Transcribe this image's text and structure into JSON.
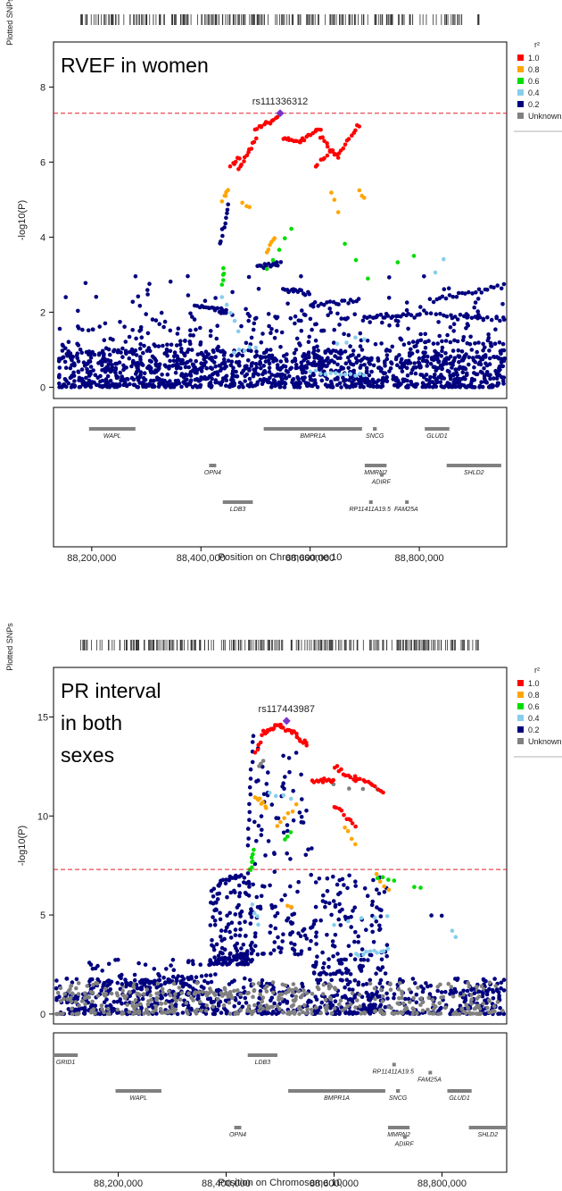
{
  "chart_data": [
    {
      "type": "scatter",
      "title": "RVEF in women",
      "title_lines": [
        "RVEF in women"
      ],
      "snp_label": "Plotted SNPs",
      "lead_snp": {
        "name": "rs111336312",
        "x": 88545000,
        "y": 7.3
      },
      "threshold": 7.3,
      "xlabel": "Position on Chromosome 10",
      "ylabel": "-log10(P)",
      "xlim": [
        88130000,
        88960000
      ],
      "ylim": [
        -0.3,
        9.2
      ],
      "yticks": [
        0,
        2,
        4,
        6,
        8
      ],
      "xticks": [
        88200000,
        88400000,
        88600000,
        88800000
      ],
      "xtick_labels": [
        "88,200,000",
        "88,400,000",
        "88,600,000",
        "88,800,000"
      ],
      "legend": {
        "title": "r²",
        "entries": [
          {
            "label": "1.0",
            "color": "#ff0000"
          },
          {
            "label": "0.8",
            "color": "#ffa500"
          },
          {
            "label": "0.6",
            "color": "#00dd00"
          },
          {
            "label": "0.4",
            "color": "#87ceeb"
          },
          {
            "label": "0.2",
            "color": "#00007f"
          },
          {
            "label": "Unknown",
            "color": "#808080"
          }
        ]
      },
      "genes": [
        {
          "name": "WAPL",
          "start": 88195000,
          "end": 88280000,
          "row": 0
        },
        {
          "name": "BMPR1A",
          "start": 88515000,
          "end": 88695000,
          "row": 0
        },
        {
          "name": "SNCG",
          "start": 88715000,
          "end": 88722000,
          "row": 0
        },
        {
          "name": "GLUD1",
          "start": 88810000,
          "end": 88855000,
          "row": 0
        },
        {
          "name": "OPN4",
          "start": 88415000,
          "end": 88428000,
          "row": 1
        },
        {
          "name": "MMRN2",
          "start": 88700000,
          "end": 88740000,
          "row": 1
        },
        {
          "name": "ADIRF",
          "start": 88728000,
          "end": 88732000,
          "row": 1.35
        },
        {
          "name": "SHLD2",
          "start": 88850000,
          "end": 88950000,
          "row": 1
        },
        {
          "name": "LDB3",
          "start": 88440000,
          "end": 88495000,
          "row": 2
        },
        {
          "name": "RP11411A19.5",
          "start": 88708000,
          "end": 88711000,
          "row": 2
        },
        {
          "name": "FAM25A",
          "start": 88774000,
          "end": 88778000,
          "row": 2
        }
      ],
      "point_groups": [
        {
          "color": "#ff0000",
          "segments": [
            [
              88455000,
              5.9,
              88470000,
              6.1,
              6
            ],
            [
              88470000,
              5.8,
              88500000,
              6.6,
              12
            ],
            [
              88500000,
              6.9,
              88540000,
              7.15,
              14
            ],
            [
              88550000,
              6.6,
              88585000,
              6.55,
              12
            ],
            [
              88585000,
              6.6,
              88620000,
              6.9,
              10
            ],
            [
              88620000,
              6.7,
              88650000,
              6.1,
              10
            ],
            [
              88650000,
              6.2,
              88690000,
              7.0,
              12
            ],
            [
              88610000,
              5.9,
              88640000,
              6.3,
              8
            ]
          ]
        },
        {
          "color": "#ffa500",
          "segments": [
            [
              88440000,
              5.0,
              88450000,
              5.3,
              5
            ],
            [
              88475000,
              4.95,
              88490000,
              4.8,
              3
            ],
            [
              88520000,
              3.6,
              88535000,
              4.0,
              6
            ],
            [
              88640000,
              5.2,
              88650000,
              4.7,
              3
            ],
            [
              88690000,
              5.3,
              88700000,
              5.0,
              3
            ]
          ]
        },
        {
          "color": "#00dd00",
          "segments": [
            [
              88440000,
              2.7,
              88442000,
              3.2,
              5
            ],
            [
              88520000,
              3.1,
              88565000,
              4.25,
              5
            ],
            [
              88665000,
              3.8,
              88705000,
              2.9,
              3
            ],
            [
              88760000,
              3.3,
              88790000,
              3.5,
              2
            ]
          ]
        },
        {
          "color": "#87ceeb",
          "segments": [
            [
              88440000,
              2.4,
              88470000,
              1.5,
              5
            ],
            [
              88460000,
              0.9,
              88500000,
              1.1,
              5
            ],
            [
              88600000,
              0.4,
              88700000,
              0.3,
              12
            ],
            [
              88650000,
              1.2,
              88700000,
              1.3,
              4
            ],
            [
              88830000,
              3.1,
              88845000,
              3.4,
              2
            ]
          ]
        }
      ],
      "dense_blue": {
        "color": "#00007f",
        "count": 1500,
        "seed": 11,
        "ranges": [
          [
            88140000,
            88955000,
            0.0,
            1.0,
            0.72
          ],
          [
            88140000,
            88955000,
            0.5,
            2.0,
            0.2
          ],
          [
            88140000,
            88955000,
            1.5,
            3.0,
            0.05
          ]
        ]
      },
      "blue_segments": [
        [
          88390000,
          2.2,
          88445000,
          2.0,
          16
        ],
        [
          88435000,
          3.8,
          88450000,
          4.9,
          10
        ],
        [
          88505000,
          3.2,
          88545000,
          3.3,
          14
        ],
        [
          88550000,
          2.6,
          88600000,
          2.5,
          14
        ],
        [
          88600000,
          2.2,
          88690000,
          2.3,
          18
        ],
        [
          88700000,
          1.9,
          88800000,
          1.9,
          22
        ],
        [
          88820000,
          2.3,
          88955000,
          2.7,
          24
        ],
        [
          88800000,
          2.0,
          88955000,
          1.8,
          22
        ],
        [
          88140000,
          0.8,
          88380000,
          1.2,
          30
        ],
        [
          88780000,
          1.2,
          88955000,
          1.2,
          24
        ],
        [
          88800000,
          0.8,
          88955000,
          0.8,
          20
        ]
      ],
      "grey_segments": [],
      "grey_dense": {
        "count": 0,
        "seed": 3,
        "ranges": []
      }
    },
    {
      "type": "scatter",
      "title": "PR interval in both sexes",
      "title_lines": [
        "PR interval",
        "in both",
        "sexes"
      ],
      "snp_label": "Plotted SNPs",
      "lead_snp": {
        "name": "rs117443987",
        "x": 88512000,
        "y": 14.8
      },
      "threshold": 7.3,
      "xlabel": "Position on Chromosome 10",
      "ylabel": "-log10(P)",
      "xlim": [
        88080000,
        88920000
      ],
      "ylim": [
        -0.5,
        17.5
      ],
      "yticks": [
        0,
        5,
        10,
        15
      ],
      "xticks": [
        88200000,
        88400000,
        88600000,
        88800000
      ],
      "xtick_labels": [
        "88,200,000",
        "88,400,000",
        "88,600,000",
        "88,800,000"
      ],
      "legend": {
        "title": "r²",
        "entries": [
          {
            "label": "1.0",
            "color": "#ff0000"
          },
          {
            "label": "0.8",
            "color": "#ffa500"
          },
          {
            "label": "0.6",
            "color": "#00dd00"
          },
          {
            "label": "0.4",
            "color": "#87ceeb"
          },
          {
            "label": "0.2",
            "color": "#00007f"
          },
          {
            "label": "Unknown",
            "color": "#808080"
          }
        ]
      },
      "genes": [
        {
          "name": "GRID1",
          "start": 88080000,
          "end": 88125000,
          "row": 0
        },
        {
          "name": "LDB3",
          "start": 88440000,
          "end": 88495000,
          "row": 0
        },
        {
          "name": "RP11411A19.5",
          "start": 88708000,
          "end": 88711000,
          "row": 0.35
        },
        {
          "name": "FAM25A",
          "start": 88775000,
          "end": 88779000,
          "row": -0.35
        },
        {
          "name": "WAPL",
          "start": 88195000,
          "end": 88280000,
          "row": 1
        },
        {
          "name": "BMPR1A",
          "start": 88515000,
          "end": 88695000,
          "row": 1
        },
        {
          "name": "SNCG",
          "start": 88715000,
          "end": 88722000,
          "row": 1
        },
        {
          "name": "GLUD1",
          "start": 88810000,
          "end": 88855000,
          "row": 1
        },
        {
          "name": "OPN4",
          "start": 88415000,
          "end": 88428000,
          "row": 2
        },
        {
          "name": "MMRN2",
          "start": 88700000,
          "end": 88740000,
          "row": 2
        },
        {
          "name": "ADIRF",
          "start": 88728000,
          "end": 88732000,
          "row": 2.35
        },
        {
          "name": "SHLD2",
          "start": 88850000,
          "end": 88950000,
          "row": 2
        }
      ],
      "point_groups": [
        {
          "color": "#ff0000",
          "segments": [
            [
              88455000,
              13.2,
              88470000,
              14.2,
              6
            ],
            [
              88470000,
              14.2,
              88500000,
              14.6,
              12
            ],
            [
              88500000,
              14.5,
              88530000,
              14.2,
              10
            ],
            [
              88530000,
              14.0,
              88550000,
              13.6,
              8
            ],
            [
              88560000,
              11.8,
              88600000,
              11.8,
              12
            ],
            [
              88600000,
              12.5,
              88640000,
              11.8,
              10
            ],
            [
              88640000,
              12.0,
              88690000,
              11.2,
              12
            ],
            [
              88600000,
              10.5,
              88640000,
              9.5,
              10
            ]
          ]
        },
        {
          "color": "#ffa500",
          "segments": [
            [
              88455000,
              11.0,
              88475000,
              10.5,
              8
            ],
            [
              88495000,
              9.5,
              88530000,
              10.5,
              6
            ],
            [
              88620000,
              9.5,
              88640000,
              8.6,
              4
            ],
            [
              88680000,
              7.0,
              88700000,
              6.2,
              4
            ],
            [
              88515000,
              5.5,
              88520000,
              5.3,
              2
            ]
          ]
        },
        {
          "color": "#00dd00",
          "segments": [
            [
              88445000,
              7.2,
              88450000,
              8.2,
              8
            ],
            [
              88510000,
              8.8,
              88520000,
              9.2,
              3
            ],
            [
              88680000,
              6.8,
              88710000,
              6.8,
              4
            ],
            [
              88750000,
              6.4,
              88760000,
              6.3,
              2
            ]
          ]
        },
        {
          "color": "#87ceeb",
          "segments": [
            [
              88450000,
              5.5,
              88460000,
              4.5,
              4
            ],
            [
              88480000,
              11.2,
              88520000,
              10.8,
              4
            ],
            [
              88640000,
              3.0,
              88700000,
              3.2,
              10
            ],
            [
              88600000,
              4.5,
              88700000,
              5.0,
              5
            ],
            [
              88820000,
              4.1,
              88825000,
              3.9,
              2
            ]
          ]
        }
      ],
      "dense_blue": {
        "color": "#00007f",
        "count": 1200,
        "seed": 29,
        "ranges": [
          [
            88085000,
            88915000,
            0.0,
            1.8,
            0.6
          ],
          [
            88370000,
            88450000,
            2.5,
            7.0,
            0.12
          ],
          [
            88450000,
            88560000,
            3.0,
            13.5,
            0.1
          ],
          [
            88560000,
            88700000,
            2.0,
            7.0,
            0.12
          ],
          [
            88140000,
            88360000,
            1.0,
            2.8,
            0.06
          ]
        ]
      },
      "blue_segments": [
        [
          88370000,
          2.5,
          88440000,
          3.0,
          18
        ],
        [
          88390000,
          6.8,
          88440000,
          7.0,
          10
        ],
        [
          88440000,
          8.5,
          88450000,
          14.1,
          14
        ],
        [
          88180000,
          1.5,
          88380000,
          2.0,
          24
        ],
        [
          88800000,
          1.1,
          88915000,
          1.2,
          18
        ],
        [
          88780000,
          4.9,
          88800000,
          5.0,
          2
        ]
      ],
      "grey_segments": [
        [
          88090000,
          1.0,
          88560000,
          1.1,
          40
        ],
        [
          88460000,
          12.5,
          88470000,
          12.8,
          3
        ],
        [
          88600000,
          11.5,
          88680000,
          11.3,
          4
        ]
      ],
      "grey_dense": {
        "count": 380,
        "seed": 61,
        "ranges": [
          [
            88085000,
            88915000,
            0.0,
            1.6,
            1.0
          ]
        ]
      }
    }
  ]
}
